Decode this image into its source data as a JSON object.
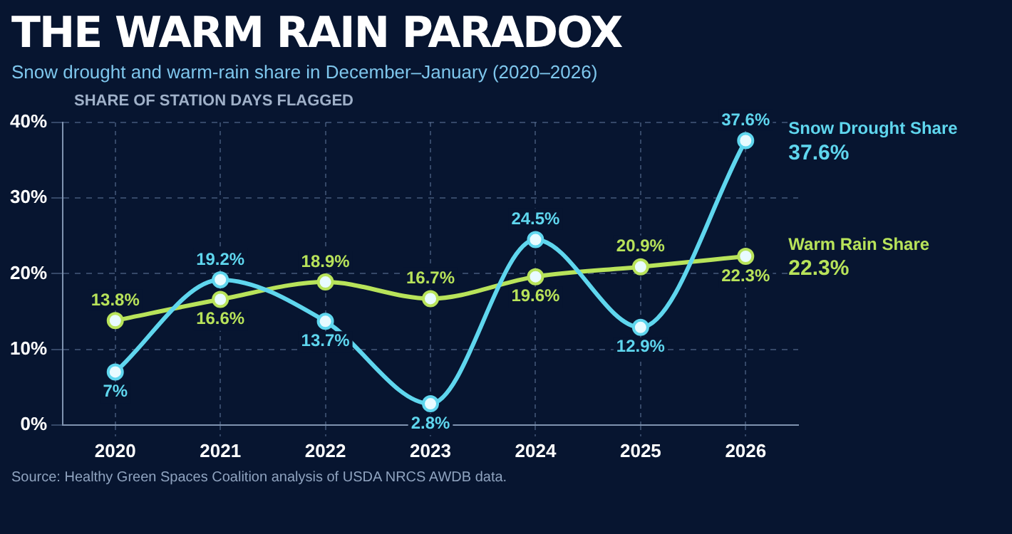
{
  "chart_data": {
    "type": "line",
    "title": "THE WARM RAIN PARADOX",
    "subtitle": "Snow drought and warm-rain share in December–January (2020–2026)",
    "ylabel": "SHARE OF STATION DAYS FLAGGED",
    "categories": [
      "2020",
      "2021",
      "2022",
      "2023",
      "2024",
      "2025",
      "2026"
    ],
    "series": [
      {
        "name": "Snow Drought Share",
        "color": "#5fd6ee",
        "values": [
          7,
          19.2,
          13.7,
          2.8,
          24.5,
          12.9,
          37.6
        ],
        "value_labels": [
          "7%",
          "19.2%",
          "13.7%",
          "2.8%",
          "24.5%",
          "12.9%",
          "37.6%"
        ]
      },
      {
        "name": "Warm Rain Share",
        "color": "#b8e35a",
        "values": [
          13.8,
          16.6,
          18.9,
          16.7,
          19.6,
          20.9,
          22.3
        ],
        "value_labels": [
          "13.8%",
          "16.6%",
          "18.9%",
          "16.7%",
          "19.6%",
          "20.9%",
          "22.3%"
        ]
      }
    ],
    "ylim": [
      0,
      40
    ],
    "yticks": [
      {
        "value": 0,
        "label": "0%"
      },
      {
        "value": 10,
        "label": "10%"
      },
      {
        "value": 20,
        "label": "20%"
      },
      {
        "value": 30,
        "label": "30%"
      },
      {
        "value": 40,
        "label": "40%"
      }
    ],
    "grid": true,
    "legend": false,
    "marker": "circle",
    "line_style": "solid",
    "annotations": [
      "Source: Healthy Green Spaces Coalition analysis of USDA NRCS AWDB data."
    ]
  }
}
